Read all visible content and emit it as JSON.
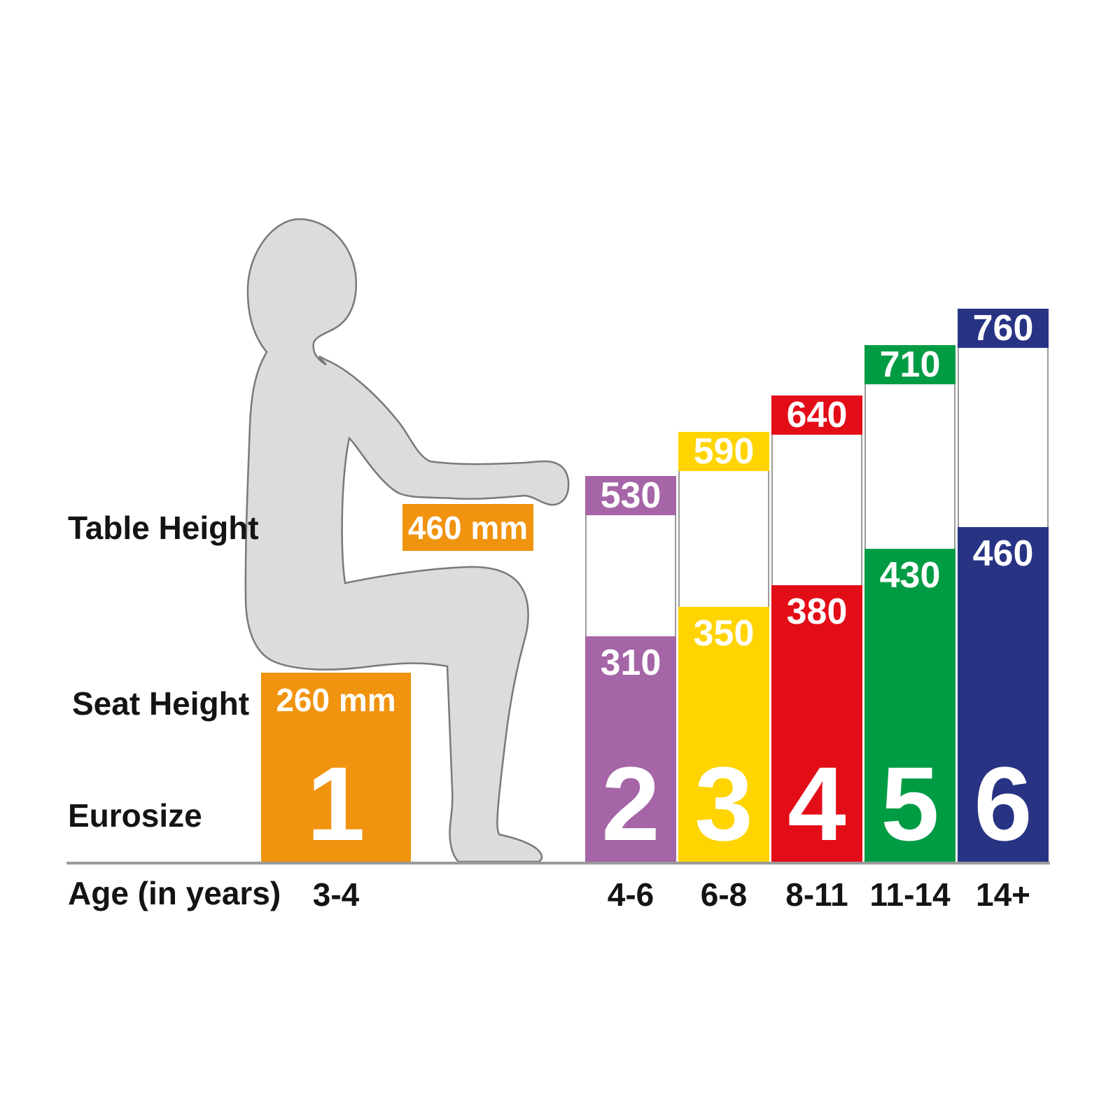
{
  "labels": {
    "table_height": "Table Height",
    "seat_height": "Seat Height",
    "eurosize": "Eurosize",
    "age": "Age (in years)"
  },
  "chart_data": {
    "type": "bar",
    "unit": "mm",
    "categories": [
      "1",
      "2",
      "3",
      "4",
      "5",
      "6"
    ],
    "ages": [
      "3-4",
      "4-6",
      "6-8",
      "8-11",
      "11-14",
      "14+"
    ],
    "series": [
      {
        "name": "Table Height",
        "values": [
          460,
          530,
          590,
          640,
          710,
          760
        ]
      },
      {
        "name": "Seat Height",
        "values": [
          260,
          310,
          350,
          380,
          430,
          460
        ]
      }
    ],
    "reference": {
      "eurosize": "1",
      "age": "3-4",
      "table_mm": 460,
      "seat_mm": 260,
      "color": "#F0930F"
    },
    "columns": [
      {
        "eurosize": "2",
        "age": "4-6",
        "table_mm": 530,
        "seat_mm": 310,
        "color": "#A565A7"
      },
      {
        "eurosize": "3",
        "age": "6-8",
        "table_mm": 590,
        "seat_mm": 350,
        "color": "#FFD400"
      },
      {
        "eurosize": "4",
        "age": "8-11",
        "table_mm": 640,
        "seat_mm": 380,
        "color": "#E30D18"
      },
      {
        "eurosize": "5",
        "age": "11-14",
        "table_mm": 710,
        "seat_mm": 430,
        "color": "#009C44"
      },
      {
        "eurosize": "6",
        "age": "14+",
        "table_mm": 760,
        "seat_mm": 460,
        "color": "#283384"
      }
    ],
    "baseline_color": "#9B9B9B",
    "gap_border_color": "#9B9B9B",
    "value_text_color": "#FFFFFF",
    "label_text_color": "#141414",
    "silhouette": {
      "fill": "#DADCDD",
      "outline": "#77797B"
    }
  }
}
